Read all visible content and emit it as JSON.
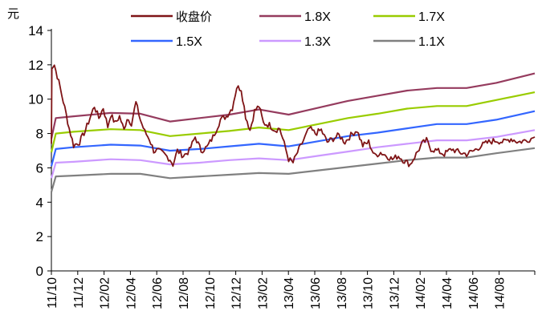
{
  "chart_data": {
    "type": "line",
    "title": "",
    "ylabel": "元",
    "xlabel": "",
    "ylim": [
      0,
      14
    ],
    "yticks": [
      "0",
      "2",
      "4",
      "6",
      "8",
      "10",
      "12",
      "14"
    ],
    "xticks": [
      "11/10",
      "11/12",
      "12/02",
      "12/04",
      "12/06",
      "12/08",
      "12/10",
      "12/12",
      "13/02",
      "13/04",
      "13/06",
      "13/08",
      "13/10",
      "13/12",
      "14/02",
      "14/04",
      "14/06",
      "14/08"
    ],
    "grid": false,
    "legend_position": "top",
    "series": [
      {
        "name": "收盘价",
        "color": "#7f1416",
        "noisy": true,
        "points": [
          [
            0,
            7.4
          ],
          [
            0.03,
            11.9
          ],
          [
            0.2,
            12.0
          ],
          [
            0.5,
            11.0
          ],
          [
            0.9,
            9.5
          ],
          [
            1.2,
            8.3
          ],
          [
            1.5,
            7.3
          ],
          [
            1.9,
            7.5
          ],
          [
            2.3,
            8.2
          ],
          [
            2.6,
            8.9
          ],
          [
            2.9,
            9.6
          ],
          [
            3.2,
            8.9
          ],
          [
            3.5,
            9.5
          ],
          [
            3.8,
            8.4
          ],
          [
            4.0,
            9.1
          ],
          [
            4.3,
            8.6
          ],
          [
            4.6,
            9.0
          ],
          [
            4.9,
            8.2
          ],
          [
            5.1,
            8.9
          ],
          [
            5.4,
            8.6
          ],
          [
            5.7,
            9.8
          ],
          [
            6.0,
            8.8
          ],
          [
            6.3,
            8.1
          ],
          [
            6.6,
            7.7
          ],
          [
            6.9,
            7.0
          ],
          [
            7.2,
            7.0
          ],
          [
            7.6,
            6.8
          ],
          [
            8.0,
            6.5
          ],
          [
            8.2,
            6.2
          ],
          [
            8.5,
            7.0
          ],
          [
            8.9,
            6.7
          ],
          [
            9.3,
            7.0
          ],
          [
            9.7,
            7.8
          ],
          [
            10.1,
            7.0
          ],
          [
            10.5,
            7.2
          ],
          [
            10.9,
            7.8
          ],
          [
            11.4,
            8.8
          ],
          [
            11.8,
            9.0
          ],
          [
            12.2,
            9.5
          ],
          [
            12.5,
            10.7
          ],
          [
            12.8,
            10.6
          ],
          [
            13.1,
            9.0
          ],
          [
            13.4,
            8.2
          ],
          [
            13.7,
            9.3
          ],
          [
            14.0,
            9.6
          ],
          [
            14.3,
            8.6
          ],
          [
            14.7,
            8.5
          ],
          [
            15.1,
            8.2
          ],
          [
            15.4,
            8.3
          ],
          [
            15.7,
            7.4
          ],
          [
            16.0,
            6.5
          ],
          [
            16.3,
            6.3
          ],
          [
            16.6,
            6.9
          ],
          [
            17.0,
            7.6
          ],
          [
            17.4,
            8.3
          ],
          [
            17.8,
            8.0
          ],
          [
            18.2,
            8.2
          ],
          [
            18.6,
            7.5
          ],
          [
            19.0,
            7.7
          ],
          [
            19.4,
            7.9
          ],
          [
            19.8,
            7.5
          ],
          [
            20.2,
            7.9
          ],
          [
            20.6,
            8.2
          ],
          [
            21.0,
            7.3
          ],
          [
            21.4,
            7.5
          ],
          [
            21.8,
            6.7
          ],
          [
            22.2,
            6.9
          ],
          [
            22.6,
            6.7
          ],
          [
            23.0,
            6.5
          ],
          [
            23.4,
            6.7
          ],
          [
            23.8,
            6.4
          ],
          [
            24.2,
            6.2
          ],
          [
            24.6,
            6.8
          ],
          [
            25.0,
            7.4
          ],
          [
            25.3,
            7.6
          ],
          [
            25.6,
            7.1
          ],
          [
            26.0,
            7.0
          ],
          [
            26.5,
            6.8
          ],
          [
            27.0,
            7.1
          ],
          [
            27.5,
            6.9
          ],
          [
            28.0,
            6.8
          ],
          [
            28.5,
            7.0
          ],
          [
            29.0,
            7.3
          ],
          [
            29.5,
            7.5
          ],
          [
            30.0,
            7.6
          ],
          [
            30.5,
            7.5
          ],
          [
            31.0,
            7.7
          ],
          [
            31.5,
            7.5
          ],
          [
            32.0,
            7.6
          ],
          [
            32.6,
            7.8
          ]
        ]
      },
      {
        "name": "1.8X",
        "color": "#953b5e",
        "points": [
          [
            0,
            7.7
          ],
          [
            0.3,
            8.9
          ],
          [
            1.5,
            9.0
          ],
          [
            4.0,
            9.2
          ],
          [
            6.0,
            9.15
          ],
          [
            8.0,
            8.7
          ],
          [
            10.0,
            8.9
          ],
          [
            12.0,
            9.1
          ],
          [
            14.0,
            9.4
          ],
          [
            16.0,
            9.1
          ],
          [
            18.0,
            9.5
          ],
          [
            20.0,
            9.9
          ],
          [
            22.0,
            10.2
          ],
          [
            24.0,
            10.5
          ],
          [
            26.0,
            10.65
          ],
          [
            28.0,
            10.65
          ],
          [
            30.0,
            10.95
          ],
          [
            32.6,
            11.5
          ]
        ]
      },
      {
        "name": "1.7X",
        "color": "#99cc00",
        "points": [
          [
            0,
            6.9
          ],
          [
            0.3,
            8.0
          ],
          [
            1.5,
            8.1
          ],
          [
            4.0,
            8.25
          ],
          [
            6.0,
            8.2
          ],
          [
            8.0,
            7.85
          ],
          [
            10.0,
            8.0
          ],
          [
            12.0,
            8.15
          ],
          [
            14.0,
            8.35
          ],
          [
            16.0,
            8.2
          ],
          [
            18.0,
            8.55
          ],
          [
            20.0,
            8.9
          ],
          [
            22.0,
            9.15
          ],
          [
            24.0,
            9.45
          ],
          [
            26.0,
            9.6
          ],
          [
            28.0,
            9.6
          ],
          [
            30.0,
            9.95
          ],
          [
            32.6,
            10.4
          ]
        ]
      },
      {
        "name": "1.5X",
        "color": "#3366ff",
        "points": [
          [
            0,
            6.1
          ],
          [
            0.3,
            7.1
          ],
          [
            1.5,
            7.2
          ],
          [
            4.0,
            7.35
          ],
          [
            6.0,
            7.3
          ],
          [
            8.0,
            7.0
          ],
          [
            10.0,
            7.1
          ],
          [
            12.0,
            7.25
          ],
          [
            14.0,
            7.4
          ],
          [
            16.0,
            7.25
          ],
          [
            18.0,
            7.55
          ],
          [
            20.0,
            7.85
          ],
          [
            22.0,
            8.05
          ],
          [
            24.0,
            8.3
          ],
          [
            26.0,
            8.55
          ],
          [
            28.0,
            8.55
          ],
          [
            30.0,
            8.8
          ],
          [
            32.6,
            9.3
          ]
        ]
      },
      {
        "name": "1.3X",
        "color": "#cc99ff",
        "points": [
          [
            0,
            5.4
          ],
          [
            0.3,
            6.3
          ],
          [
            1.5,
            6.35
          ],
          [
            4.0,
            6.5
          ],
          [
            6.0,
            6.45
          ],
          [
            8.0,
            6.2
          ],
          [
            10.0,
            6.3
          ],
          [
            12.0,
            6.45
          ],
          [
            14.0,
            6.55
          ],
          [
            16.0,
            6.45
          ],
          [
            18.0,
            6.7
          ],
          [
            20.0,
            6.95
          ],
          [
            22.0,
            7.2
          ],
          [
            24.0,
            7.4
          ],
          [
            26.0,
            7.6
          ],
          [
            28.0,
            7.6
          ],
          [
            30.0,
            7.8
          ],
          [
            32.6,
            8.2
          ]
        ]
      },
      {
        "name": "1.1X",
        "color": "#808080",
        "points": [
          [
            0,
            4.6
          ],
          [
            0.3,
            5.5
          ],
          [
            1.5,
            5.55
          ],
          [
            4.0,
            5.65
          ],
          [
            6.0,
            5.65
          ],
          [
            8.0,
            5.4
          ],
          [
            10.0,
            5.5
          ],
          [
            12.0,
            5.6
          ],
          [
            14.0,
            5.7
          ],
          [
            16.0,
            5.65
          ],
          [
            18.0,
            5.85
          ],
          [
            20.0,
            6.05
          ],
          [
            22.0,
            6.25
          ],
          [
            24.0,
            6.45
          ],
          [
            26.0,
            6.6
          ],
          [
            28.0,
            6.6
          ],
          [
            30.0,
            6.85
          ],
          [
            32.6,
            7.15
          ]
        ]
      }
    ]
  }
}
